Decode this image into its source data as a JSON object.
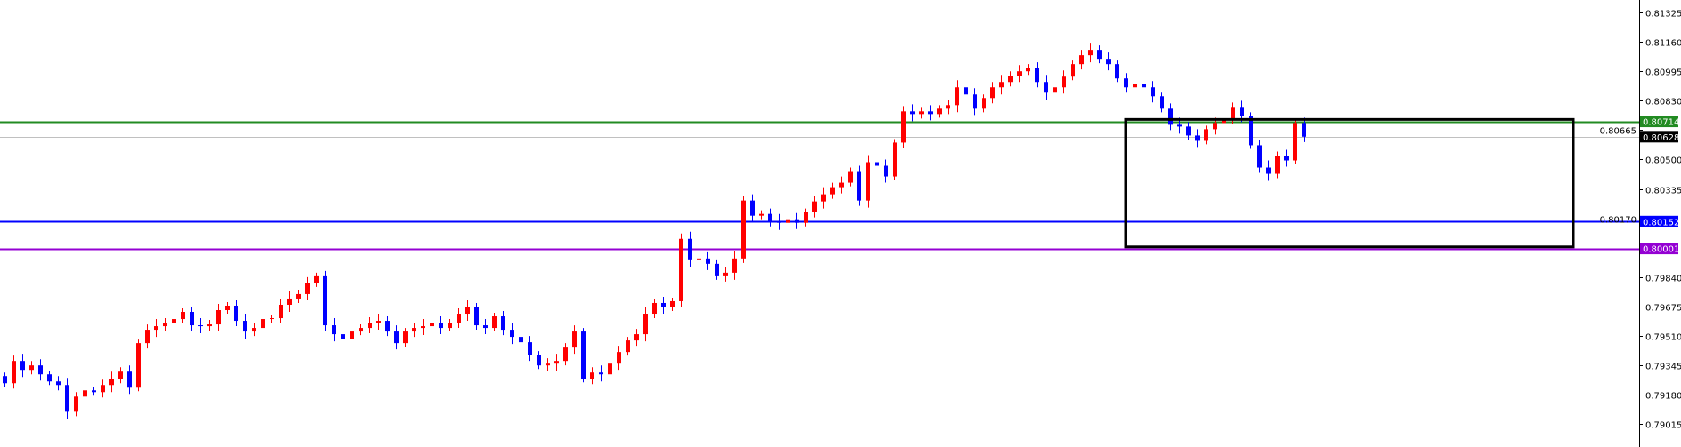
{
  "chart_data": {
    "type": "candlestick",
    "title": "",
    "xlabel": "",
    "ylabel": "",
    "ylim": [
      0.7896,
      0.814
    ],
    "grid": false,
    "colors": {
      "bullish": "#ff0000",
      "bearish": "#0000ff",
      "doji": "#000000",
      "background": "#ffffff",
      "axis": "#000000"
    },
    "y_ticks": [
      "0.81325",
      "0.81160",
      "0.80995",
      "0.80830",
      "0.80665",
      "0.80500",
      "0.80335",
      "0.80170",
      "0.79840",
      "0.79675",
      "0.79510",
      "0.79345",
      "0.79180",
      "0.79015"
    ],
    "open_first": 0.79285,
    "close": [
      0.79245,
      0.7937,
      0.7932,
      0.79345,
      0.79295,
      0.79255,
      0.79235,
      0.79085,
      0.7917,
      0.79205,
      0.79195,
      0.79235,
      0.7927,
      0.7931,
      0.7922,
      0.7947,
      0.79545,
      0.79565,
      0.79585,
      0.79605,
      0.79645,
      0.7957,
      0.79565,
      0.79575,
      0.79655,
      0.7968,
      0.79595,
      0.79535,
      0.79555,
      0.79605,
      0.7961,
      0.79685,
      0.7972,
      0.79745,
      0.79805,
      0.79845,
      0.7957,
      0.7952,
      0.79495,
      0.79535,
      0.79555,
      0.79585,
      0.79595,
      0.79535,
      0.7947,
      0.79535,
      0.79555,
      0.79565,
      0.79585,
      0.79555,
      0.79585,
      0.79635,
      0.7967,
      0.7957,
      0.79555,
      0.7962,
      0.79545,
      0.79505,
      0.79475,
      0.79405,
      0.79345,
      0.79355,
      0.7937,
      0.79445,
      0.79535,
      0.7927,
      0.79305,
      0.79295,
      0.79355,
      0.7942,
      0.79485,
      0.7952,
      0.79635,
      0.79695,
      0.7967,
      0.79705,
      0.80055,
      0.79935,
      0.79945,
      0.79915,
      0.79845,
      0.79865,
      0.79945,
      0.8027,
      0.80185,
      0.80195,
      0.80155,
      0.80145,
      0.80165,
      0.80145,
      0.80205,
      0.80265,
      0.80305,
      0.80345,
      0.8037,
      0.80435,
      0.8027,
      0.80485,
      0.80465,
      0.80405,
      0.80595,
      0.8077,
      0.80755,
      0.8077,
      0.80755,
      0.80785,
      0.80805,
      0.80905,
      0.80865,
      0.80785,
      0.80845,
      0.80905,
      0.80935,
      0.8097,
      0.80995,
      0.81015,
      0.80935,
      0.80875,
      0.80905,
      0.80965,
      0.81035,
      0.81085,
      0.81115,
      0.81065,
      0.81035,
      0.80955,
      0.80905,
      0.80925,
      0.80905,
      0.80855,
      0.80785,
      0.80695,
      0.80685,
      0.80635,
      0.80605,
      0.8067,
      0.80705,
      0.80725,
      0.80795,
      0.80745,
      0.8058,
      0.80455,
      0.8042,
      0.8052,
      0.80495,
      0.80705,
      0.80628
    ],
    "horizontal_lines": [
      {
        "price": 0.80714,
        "label": "0.80714",
        "color": "#228b22"
      },
      {
        "price": 0.80628,
        "label": "0.80628",
        "color": "#c0c0c0",
        "label_bg": "#000000"
      },
      {
        "price": 0.80152,
        "label": "0.80152",
        "color": "#0000ff"
      },
      {
        "price": 0.80001,
        "label": "0.80001",
        "color": "#9400d3"
      }
    ],
    "rectangle": {
      "price_top": 0.80725,
      "price_bottom": 0.8001,
      "color": "#000000"
    }
  }
}
